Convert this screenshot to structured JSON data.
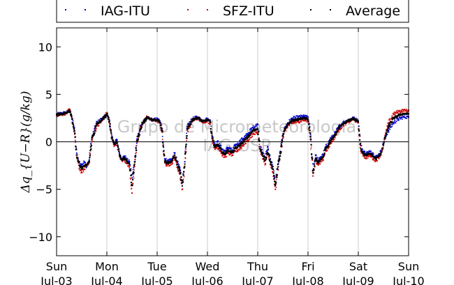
{
  "chart_data": {
    "type": "scatter",
    "ylabel": "Δq_{U−R}(g/kg)",
    "ylim": [
      -12,
      12
    ],
    "yticks": [
      -10,
      -5,
      0,
      5,
      10
    ],
    "x_unit": "days",
    "xlim": [
      "Sun Jul-03",
      "Sun Jul-10"
    ],
    "x_ticks": [
      {
        "day": "Sun",
        "date": "Jul-03"
      },
      {
        "day": "Mon",
        "date": "Jul-04"
      },
      {
        "day": "Tue",
        "date": "Jul-05"
      },
      {
        "day": "Wed",
        "date": "Jul-06"
      },
      {
        "day": "Thu",
        "date": "Jul-07"
      },
      {
        "day": "Fri",
        "date": "Jul-08"
      },
      {
        "day": "Sat",
        "date": "Jul-09"
      },
      {
        "day": "Sun",
        "date": "Jul-10"
      }
    ],
    "grid": "vertical",
    "zero_line": true,
    "legend": "top",
    "watermark": [
      "Grupo de Micrometeorologia",
      "IAG-USP"
    ],
    "series": [
      {
        "name": "IAG-ITU",
        "color": "#0000cc",
        "x": [
          0,
          0.1,
          0.2,
          0.26,
          0.3,
          0.35,
          0.4,
          0.45,
          0.5,
          0.55,
          0.6,
          0.65,
          0.7,
          0.8,
          0.9,
          1,
          1.05,
          1.1,
          1.15,
          1.2,
          1.25,
          1.3,
          1.35,
          1.4,
          1.45,
          1.5,
          1.55,
          1.6,
          1.7,
          1.8,
          1.9,
          2,
          2.05,
          2.1,
          2.15,
          2.2,
          2.3,
          2.35,
          2.4,
          2.45,
          2.5,
          2.55,
          2.6,
          2.7,
          2.8,
          2.9,
          3,
          3.05,
          3.1,
          3.15,
          3.2,
          3.25,
          3.3,
          3.35,
          3.4,
          3.45,
          3.5,
          3.55,
          3.6,
          3.7,
          3.8,
          3.9,
          4,
          4.05,
          4.1,
          4.15,
          4.2,
          4.25,
          4.3,
          4.35,
          4.4,
          4.45,
          4.5,
          4.55,
          4.6,
          4.7,
          4.8,
          4.9,
          5,
          5.05,
          5.1,
          5.15,
          5.2,
          5.25,
          5.3,
          5.35,
          5.4,
          5.45,
          5.5,
          5.55,
          5.6,
          5.7,
          5.8,
          5.9,
          6,
          6.05,
          6.1,
          6.15,
          6.2,
          6.25,
          6.3,
          6.35,
          6.4,
          6.45,
          6.5,
          6.55,
          6.6,
          6.7,
          6.8,
          6.9,
          7
        ],
        "y": [
          2.9,
          3.0,
          3.1,
          3.3,
          2.7,
          1.5,
          -1.2,
          -2.2,
          -2.4,
          -2.1,
          -2.6,
          -1.9,
          0.4,
          2.0,
          2.4,
          2.8,
          2.3,
          0.6,
          -0.1,
          0.2,
          -1.2,
          -1.8,
          -1.5,
          -1.9,
          -2.1,
          -3.8,
          -2.1,
          0.3,
          1.9,
          2.5,
          2.3,
          2.4,
          2.2,
          1.4,
          -1.8,
          -2.0,
          -1.8,
          -1.2,
          -2.1,
          -2.7,
          -4.3,
          -2.1,
          1.6,
          2.4,
          2.6,
          2.2,
          2.4,
          2.3,
          0.5,
          -0.3,
          0.0,
          -0.4,
          -0.8,
          -1.0,
          -0.6,
          -0.7,
          -0.9,
          -0.4,
          -0.2,
          0.3,
          0.8,
          1.5,
          1.8,
          -0.5,
          -1.2,
          -1.6,
          -0.5,
          -1.8,
          -2.6,
          -4.2,
          -2.4,
          -1.0,
          0.8,
          1.6,
          2.0,
          2.5,
          2.6,
          2.7,
          2.6,
          0.8,
          -3.0,
          -1.4,
          -2.0,
          -1.6,
          -1.4,
          -0.5,
          -0.2,
          0.4,
          0.6,
          1.0,
          1.5,
          2.0,
          2.3,
          2.5,
          2.2,
          -0.4,
          -1.0,
          -1.2,
          -1.1,
          -1.0,
          -1.3,
          -1.6,
          -1.4,
          -1.0,
          -0.2,
          0.6,
          1.2,
          2.0,
          2.4,
          2.6,
          2.6
        ]
      },
      {
        "name": "SFZ-ITU",
        "color": "#cc0000",
        "x": [
          0,
          0.1,
          0.2,
          0.26,
          0.3,
          0.35,
          0.4,
          0.45,
          0.5,
          0.55,
          0.6,
          0.65,
          0.7,
          0.8,
          0.9,
          1,
          1.05,
          1.1,
          1.15,
          1.2,
          1.25,
          1.3,
          1.35,
          1.4,
          1.45,
          1.5,
          1.55,
          1.6,
          1.7,
          1.8,
          1.9,
          2,
          2.05,
          2.1,
          2.15,
          2.2,
          2.3,
          2.35,
          2.4,
          2.45,
          2.5,
          2.55,
          2.6,
          2.7,
          2.8,
          2.9,
          3,
          3.05,
          3.1,
          3.15,
          3.2,
          3.25,
          3.3,
          3.35,
          3.4,
          3.45,
          3.5,
          3.55,
          3.6,
          3.7,
          3.8,
          3.9,
          4,
          4.05,
          4.1,
          4.15,
          4.2,
          4.25,
          4.3,
          4.35,
          4.4,
          4.45,
          4.5,
          4.55,
          4.6,
          4.7,
          4.8,
          4.9,
          5,
          5.05,
          5.1,
          5.15,
          5.2,
          5.25,
          5.3,
          5.35,
          5.4,
          5.45,
          5.5,
          5.55,
          5.6,
          5.7,
          5.8,
          5.9,
          6,
          6.05,
          6.1,
          6.15,
          6.2,
          6.25,
          6.3,
          6.35,
          6.4,
          6.45,
          6.5,
          6.55,
          6.6,
          6.7,
          6.8,
          6.9,
          7
        ],
        "y": [
          2.8,
          2.9,
          3.0,
          3.4,
          2.6,
          1.1,
          -1.6,
          -2.8,
          -3.2,
          -2.9,
          -2.4,
          -2.2,
          0.0,
          1.7,
          2.2,
          3.0,
          2.0,
          0.3,
          -0.4,
          -0.1,
          -1.5,
          -2.0,
          -1.9,
          -2.3,
          -2.6,
          -5.4,
          -2.6,
          0.0,
          1.8,
          2.6,
          2.3,
          2.2,
          2.0,
          1.0,
          -2.2,
          -2.5,
          -2.2,
          -1.6,
          -2.7,
          -3.4,
          -5.0,
          -2.6,
          1.2,
          2.2,
          2.5,
          2.1,
          2.2,
          2.0,
          0.2,
          -0.8,
          -0.5,
          -0.9,
          -1.4,
          -1.6,
          -1.2,
          -1.3,
          -1.4,
          -1.0,
          -0.9,
          -0.4,
          0.2,
          0.8,
          1.0,
          -1.0,
          -1.8,
          -2.3,
          -1.2,
          -2.4,
          -3.2,
          -5.0,
          -2.9,
          -1.5,
          0.4,
          1.3,
          1.7,
          2.0,
          2.1,
          2.3,
          2.2,
          0.2,
          -3.6,
          -2.0,
          -2.4,
          -2.1,
          -1.9,
          -0.9,
          -0.7,
          -0.1,
          0.2,
          0.7,
          1.2,
          1.8,
          2.1,
          2.4,
          2.0,
          -1.0,
          -1.4,
          -1.7,
          -1.5,
          -1.5,
          -1.8,
          -2.0,
          -1.7,
          -1.3,
          -0.4,
          1.0,
          2.0,
          2.9,
          3.2,
          3.3,
          3.3
        ]
      },
      {
        "name": "Average",
        "color": "#000000",
        "x": [
          0,
          0.1,
          0.2,
          0.26,
          0.3,
          0.35,
          0.4,
          0.45,
          0.5,
          0.55,
          0.6,
          0.65,
          0.7,
          0.8,
          0.9,
          1,
          1.05,
          1.1,
          1.15,
          1.2,
          1.25,
          1.3,
          1.35,
          1.4,
          1.45,
          1.5,
          1.55,
          1.6,
          1.7,
          1.8,
          1.9,
          2,
          2.05,
          2.1,
          2.15,
          2.2,
          2.3,
          2.35,
          2.4,
          2.45,
          2.5,
          2.55,
          2.6,
          2.7,
          2.8,
          2.9,
          3,
          3.05,
          3.1,
          3.15,
          3.2,
          3.25,
          3.3,
          3.35,
          3.4,
          3.45,
          3.5,
          3.55,
          3.6,
          3.7,
          3.8,
          3.9,
          4,
          4.05,
          4.1,
          4.15,
          4.2,
          4.25,
          4.3,
          4.35,
          4.4,
          4.45,
          4.5,
          4.55,
          4.6,
          4.7,
          4.8,
          4.9,
          5,
          5.05,
          5.1,
          5.15,
          5.2,
          5.25,
          5.3,
          5.35,
          5.4,
          5.45,
          5.5,
          5.55,
          5.6,
          5.7,
          5.8,
          5.9,
          6,
          6.05,
          6.1,
          6.15,
          6.2,
          6.25,
          6.3,
          6.35,
          6.4,
          6.45,
          6.5,
          6.55,
          6.6,
          6.7,
          6.8,
          6.9,
          7
        ],
        "y": [
          2.85,
          2.95,
          3.05,
          3.35,
          2.65,
          1.3,
          -1.4,
          -2.5,
          -2.8,
          -2.5,
          -2.5,
          -2.05,
          0.2,
          1.85,
          2.3,
          2.9,
          2.15,
          0.45,
          -0.25,
          0.05,
          -1.35,
          -1.9,
          -1.7,
          -2.1,
          -2.35,
          -4.6,
          -2.35,
          0.15,
          1.85,
          2.55,
          2.3,
          2.3,
          2.1,
          1.2,
          -2.0,
          -2.25,
          -2.0,
          -1.4,
          -2.4,
          -3.05,
          -4.65,
          -2.35,
          1.4,
          2.3,
          2.55,
          2.15,
          2.3,
          2.15,
          0.35,
          -0.55,
          -0.25,
          -0.65,
          -1.1,
          -1.3,
          -0.9,
          -1.0,
          -1.15,
          -0.7,
          -0.55,
          -0.05,
          0.5,
          1.15,
          1.4,
          -0.75,
          -1.5,
          -1.95,
          -0.85,
          -2.1,
          -2.9,
          -4.6,
          -2.65,
          -1.25,
          0.6,
          1.45,
          1.85,
          2.25,
          2.35,
          2.5,
          2.4,
          0.5,
          -3.3,
          -1.7,
          -2.2,
          -1.85,
          -1.65,
          -0.7,
          -0.45,
          0.15,
          0.4,
          0.85,
          1.35,
          1.9,
          2.2,
          2.45,
          2.1,
          -0.7,
          -1.2,
          -1.45,
          -1.3,
          -1.25,
          -1.55,
          -1.8,
          -1.55,
          -1.15,
          -0.3,
          0.8,
          1.6,
          2.45,
          2.8,
          2.95,
          2.95
        ]
      }
    ]
  }
}
